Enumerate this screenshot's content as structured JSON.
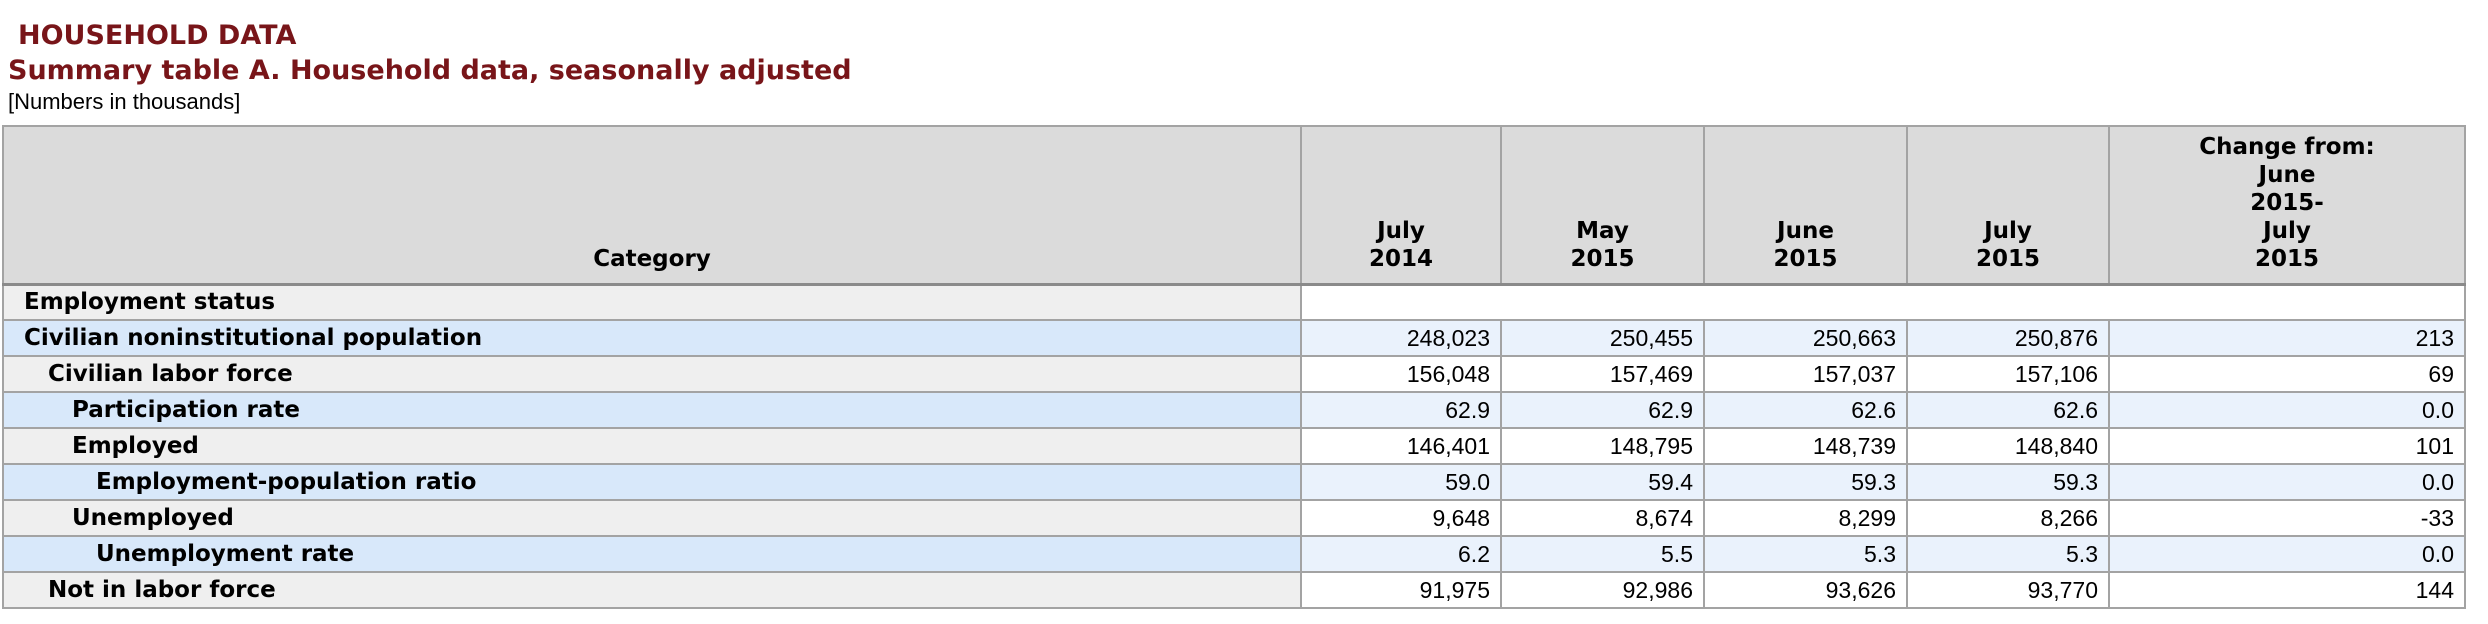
{
  "page": {
    "title": "HOUSEHOLD DATA",
    "subtitle": "Summary table A. Household data, seasonally adjusted",
    "units_note": "[Numbers in thousands]"
  },
  "colors": {
    "title_maroon": "#781519",
    "header_bg": "#dbdbdb",
    "stripe_gray_category": "#efefef",
    "stripe_blue_category": "#d8e8fa",
    "stripe_blue_values": "#eaf2fc",
    "border_gray": "#a3a3a3"
  },
  "table": {
    "category_header": "Category",
    "column_headers": [
      "July\n2014",
      "May\n2015",
      "June\n2015",
      "July\n2015",
      "Change from:\nJune\n2015-\nJuly\n2015"
    ],
    "rows": [
      {
        "label": "Employment status",
        "indent": 0,
        "section": true,
        "values": []
      },
      {
        "label": "Civilian noninstitutional population",
        "indent": 0,
        "section": false,
        "values": [
          "248,023",
          "250,455",
          "250,663",
          "250,876",
          "213"
        ]
      },
      {
        "label": "Civilian labor force",
        "indent": 1,
        "section": false,
        "values": [
          "156,048",
          "157,469",
          "157,037",
          "157,106",
          "69"
        ]
      },
      {
        "label": "Participation rate",
        "indent": 2,
        "section": false,
        "values": [
          "62.9",
          "62.9",
          "62.6",
          "62.6",
          "0.0"
        ]
      },
      {
        "label": "Employed",
        "indent": 2,
        "section": false,
        "values": [
          "146,401",
          "148,795",
          "148,739",
          "148,840",
          "101"
        ]
      },
      {
        "label": "Employment-population ratio",
        "indent": 3,
        "section": false,
        "values": [
          "59.0",
          "59.4",
          "59.3",
          "59.3",
          "0.0"
        ]
      },
      {
        "label": "Unemployed",
        "indent": 2,
        "section": false,
        "values": [
          "9,648",
          "8,674",
          "8,299",
          "8,266",
          "-33"
        ]
      },
      {
        "label": "Unemployment rate",
        "indent": 3,
        "section": false,
        "values": [
          "6.2",
          "5.5",
          "5.3",
          "5.3",
          "0.0"
        ]
      },
      {
        "label": "Not in labor force",
        "indent": 1,
        "section": false,
        "values": [
          "91,975",
          "92,986",
          "93,626",
          "93,770",
          "144"
        ]
      }
    ]
  }
}
